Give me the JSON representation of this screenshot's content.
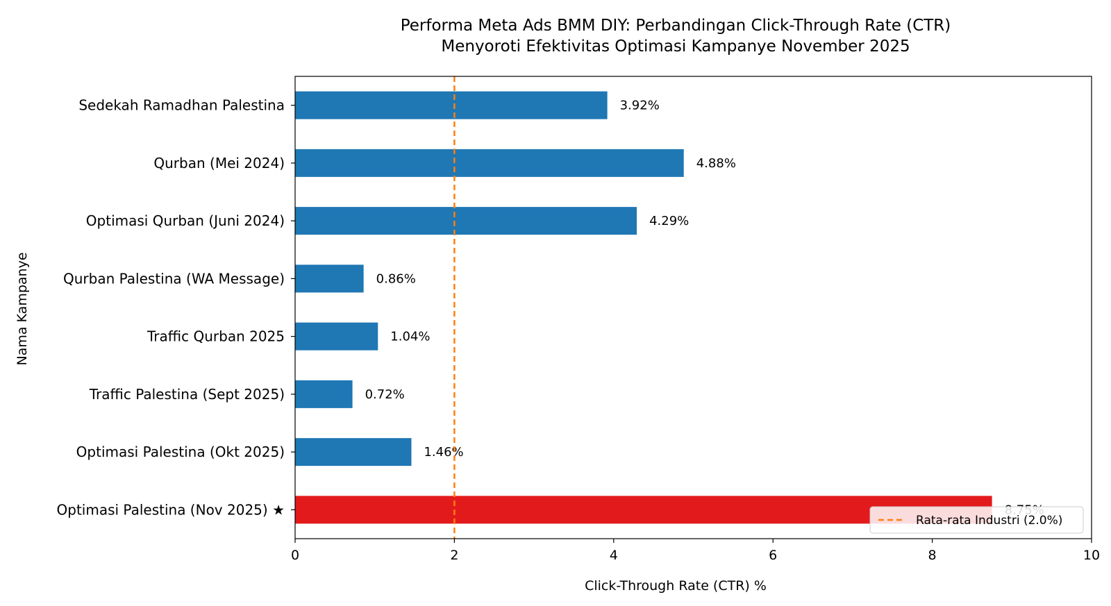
{
  "chart_data": {
    "type": "bar",
    "orientation": "horizontal",
    "title": "Performa Meta Ads BMM DIY: Perbandingan Click-Through Rate (CTR)",
    "subtitle": "Menyoroti Efektivitas Optimasi Kampanye November 2025",
    "xlabel": "Click-Through Rate (CTR) %",
    "ylabel": "Nama Kampanye",
    "xlim": [
      0,
      10
    ],
    "xticks": [
      0,
      2,
      4,
      6,
      8,
      10
    ],
    "grid": false,
    "categories": [
      "Sedekah Ramadhan Palestina",
      "Qurban (Mei 2024)",
      "Optimasi Qurban (Juni 2024)",
      "Qurban Palestina (WA Message)",
      "Traffic Qurban 2025",
      "Traffic Palestina (Sept 2025)",
      "Optimasi Palestina (Okt 2025)",
      "Optimasi Palestina (Nov 2025) ★"
    ],
    "values": [
      3.92,
      4.88,
      4.29,
      0.86,
      1.04,
      0.72,
      1.46,
      8.75
    ],
    "value_labels": [
      "3.92%",
      "4.88%",
      "4.29%",
      "0.86%",
      "1.04%",
      "0.72%",
      "1.46%",
      "8.75%"
    ],
    "highlight_index": 7,
    "colors": {
      "default": "#1f77b4",
      "highlight": "#e31a1c",
      "reference": "#ff7f0e"
    },
    "reference_line": {
      "value": 2.0,
      "label": "Rata-rata Industri (2.0%)",
      "style": "dashed"
    },
    "legend": {
      "placement": "lower-right",
      "entries": [
        "Rata-rata Industri (2.0%)"
      ]
    }
  }
}
